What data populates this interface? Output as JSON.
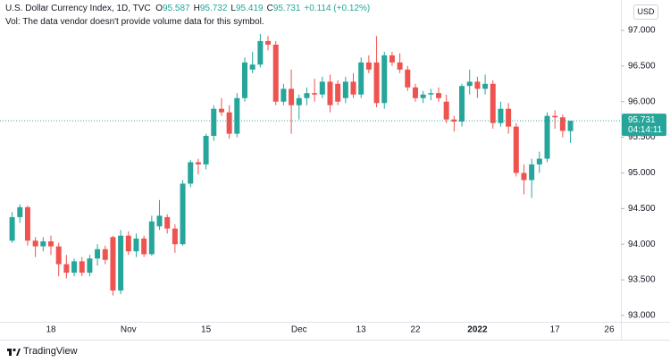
{
  "chart_data": {
    "type": "candlestick",
    "title": "U.S. Dollar Currency Index, 1D, TVC",
    "ohlc_labels": [
      "O",
      "H",
      "L",
      "C"
    ],
    "change": "+0.114 (+0.12%)",
    "volume_note": "Vol: The data vendor doesn't provide volume data for this symbol.",
    "currency": "USD",
    "countdown": "04:14:11",
    "branding": "TradingView",
    "up_color": "#26a69a",
    "down_color": "#ef5350",
    "categories": [
      null,
      null,
      null,
      null,
      null,
      "18",
      null,
      null,
      null,
      null,
      null,
      null,
      null,
      null,
      null,
      "Nov",
      null,
      null,
      null,
      null,
      null,
      null,
      null,
      null,
      null,
      "15",
      null,
      null,
      null,
      null,
      null,
      null,
      null,
      null,
      null,
      null,
      null,
      "Dec",
      null,
      null,
      null,
      null,
      null,
      null,
      null,
      "13",
      null,
      null,
      null,
      null,
      null,
      null,
      "22",
      null,
      null,
      null,
      null,
      null,
      null,
      null,
      "2022",
      null,
      null,
      null,
      null,
      null,
      null,
      null,
      null,
      null,
      "17",
      null,
      null,
      null,
      null,
      null,
      null,
      "26"
    ],
    "open": [
      94.05,
      94.38,
      94.52,
      94.05,
      93.97,
      94.04,
      93.97,
      93.72,
      93.6,
      93.76,
      93.6,
      93.8,
      93.93,
      94.1,
      93.35,
      94.12,
      93.9,
      94.08,
      93.86,
      94.25,
      94.38,
      94.22,
      94.0,
      94.85,
      95.15,
      95.12,
      95.52,
      95.9,
      95.85,
      95.55,
      96.05,
      96.45,
      96.52,
      96.85,
      96.8,
      96.0,
      96.18,
      95.95,
      96.05,
      96.12,
      96.1,
      96.28,
      96.25,
      96.05,
      96.28,
      96.1,
      96.55,
      96.55,
      95.98,
      96.65,
      96.55,
      96.45,
      96.2,
      96.05,
      96.1,
      96.12,
      96.0,
      95.75,
      95.72,
      96.22,
      96.28,
      96.18,
      96.25,
      95.7,
      95.9,
      95.65,
      95.0,
      94.9,
      95.12,
      95.2,
      95.8,
      95.78,
      95.587,
      null,
      null,
      null,
      null,
      null
    ],
    "high": [
      94.45,
      94.56,
      94.54,
      94.1,
      94.1,
      94.12,
      94.02,
      93.85,
      93.8,
      93.82,
      93.85,
      94.0,
      93.98,
      94.12,
      94.2,
      94.18,
      94.15,
      94.12,
      94.4,
      94.62,
      94.42,
      94.28,
      94.9,
      95.18,
      95.2,
      95.55,
      95.95,
      96.05,
      95.95,
      96.12,
      96.62,
      96.7,
      96.95,
      96.92,
      96.85,
      96.25,
      96.45,
      96.1,
      96.2,
      96.32,
      96.35,
      96.38,
      96.3,
      96.35,
      96.4,
      96.62,
      96.65,
      96.92,
      96.7,
      96.7,
      96.68,
      96.5,
      96.25,
      96.15,
      96.18,
      96.2,
      96.1,
      95.8,
      96.25,
      96.45,
      96.35,
      96.38,
      96.3,
      96.0,
      95.98,
      95.7,
      95.12,
      95.2,
      95.3,
      95.85,
      95.88,
      95.82,
      95.732,
      null,
      null,
      null,
      null,
      null
    ],
    "low": [
      94.02,
      94.3,
      93.98,
      93.82,
      93.9,
      93.85,
      93.55,
      93.52,
      93.55,
      93.55,
      93.55,
      93.7,
      93.72,
      93.28,
      93.3,
      93.85,
      93.82,
      93.82,
      93.84,
      94.2,
      94.15,
      93.88,
      93.98,
      94.8,
      94.98,
      95.05,
      95.45,
      95.8,
      95.48,
      95.5,
      96.0,
      96.4,
      96.48,
      96.72,
      95.95,
      95.95,
      95.55,
      95.75,
      95.95,
      96.0,
      96.05,
      95.85,
      95.95,
      95.98,
      96.05,
      96.05,
      96.4,
      95.92,
      95.9,
      96.5,
      96.4,
      96.15,
      96.0,
      95.98,
      96.02,
      96.0,
      95.7,
      95.58,
      95.65,
      96.1,
      96.05,
      96.1,
      95.62,
      95.65,
      95.55,
      94.95,
      94.7,
      94.65,
      95.0,
      95.15,
      95.62,
      95.5,
      95.419,
      null,
      null,
      null,
      null,
      null
    ],
    "close": [
      94.38,
      94.52,
      94.05,
      93.97,
      94.04,
      93.97,
      93.72,
      93.6,
      93.76,
      93.6,
      93.8,
      93.93,
      93.78,
      93.35,
      94.12,
      93.9,
      94.08,
      93.86,
      94.32,
      94.4,
      94.22,
      94.0,
      94.85,
      95.15,
      95.12,
      95.52,
      95.9,
      95.85,
      95.55,
      96.05,
      96.55,
      96.52,
      96.85,
      96.8,
      96.0,
      96.18,
      95.95,
      96.05,
      96.12,
      96.1,
      96.28,
      95.95,
      96.0,
      96.28,
      96.1,
      96.55,
      96.45,
      95.98,
      96.65,
      96.55,
      96.45,
      96.2,
      96.05,
      96.1,
      96.12,
      96.05,
      95.75,
      95.72,
      96.22,
      96.28,
      96.18,
      96.25,
      95.7,
      95.9,
      95.65,
      95.0,
      94.9,
      95.12,
      95.2,
      95.8,
      95.78,
      95.59,
      95.731,
      null,
      null,
      null,
      null,
      null
    ],
    "ylim": [
      92.912,
      97.426
    ],
    "yticks": [
      {
        "value": 93,
        "label": "93.000"
      },
      {
        "value": 93.5,
        "label": "93.500"
      },
      {
        "value": 94,
        "label": "94.000"
      },
      {
        "value": 94.5,
        "label": "94.500"
      },
      {
        "value": 95,
        "label": "95.000"
      },
      {
        "value": 95.5,
        "label": "95.500"
      },
      {
        "value": 96,
        "label": "96.000"
      },
      {
        "value": 96.5,
        "label": "96.500"
      },
      {
        "value": 97,
        "label": "97.000"
      }
    ]
  }
}
